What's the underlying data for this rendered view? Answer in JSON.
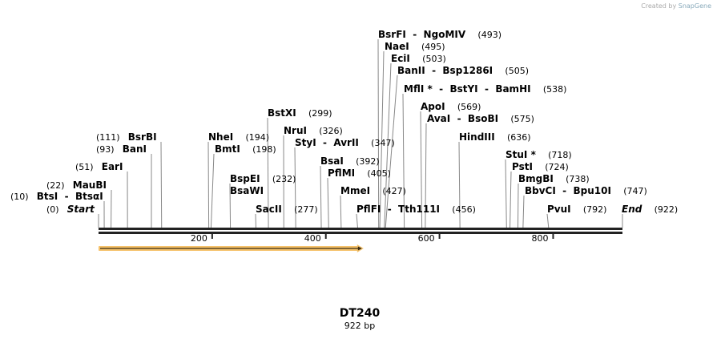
{
  "credit": {
    "prefix": "Created by",
    "brand": "SnapGene"
  },
  "map": {
    "name": "DT240",
    "length_label": "922 bp",
    "length_bp": 922,
    "ticks": [
      {
        "bp": 200,
        "label": "200"
      },
      {
        "bp": 400,
        "label": "400"
      },
      {
        "bp": 600,
        "label": "600"
      },
      {
        "bp": 800,
        "label": "800"
      }
    ],
    "feature": {
      "start": 1,
      "end": 465,
      "direction": "forward",
      "color": "#f5c26b"
    },
    "sites": [
      {
        "name": "Start",
        "pos": 0,
        "pos_label": "(0)",
        "italic": true
      },
      {
        "name": "BtsI  -  BtsαI",
        "pos": 10,
        "pos_label": "(10)"
      },
      {
        "name": "MauBI",
        "pos": 22,
        "pos_label": "(22)"
      },
      {
        "name": "EarI",
        "pos": 51,
        "pos_label": "(51)"
      },
      {
        "name": "BanI",
        "pos": 93,
        "pos_label": "(93)"
      },
      {
        "name": "BsrBI",
        "pos": 111,
        "pos_label": "(111)"
      },
      {
        "name": "NheI",
        "pos": 194,
        "pos_label": "(194)"
      },
      {
        "name": "BmtI",
        "pos": 198,
        "pos_label": "(198)"
      },
      {
        "name": "BspEI",
        "pos": 232,
        "pos_label": "(232)"
      },
      {
        "name": "BsaWI",
        "pos": 232,
        "pos_label": ""
      },
      {
        "name": "SacII",
        "pos": 277,
        "pos_label": "(277)"
      },
      {
        "name": "BstXI",
        "pos": 299,
        "pos_label": "(299)"
      },
      {
        "name": "NruI",
        "pos": 326,
        "pos_label": "(326)"
      },
      {
        "name": "StyI  -  AvrII",
        "pos": 347,
        "pos_label": "(347)"
      },
      {
        "name": "BsaI",
        "pos": 392,
        "pos_label": "(392)"
      },
      {
        "name": "PflMI",
        "pos": 405,
        "pos_label": "(405)"
      },
      {
        "name": "MmeI",
        "pos": 427,
        "pos_label": "(427)"
      },
      {
        "name": "PflFI  -  Tth111I",
        "pos": 456,
        "pos_label": "(456)"
      },
      {
        "name": "BsrFI  -  NgoMIV",
        "pos": 493,
        "pos_label": "(493)"
      },
      {
        "name": "NaeI",
        "pos": 495,
        "pos_label": "(495)"
      },
      {
        "name": "EciI",
        "pos": 503,
        "pos_label": "(503)"
      },
      {
        "name": "BanII  -  Bsp1286I",
        "pos": 505,
        "pos_label": "(505)"
      },
      {
        "name": "MflI *  -  BstYI  -  BamHI",
        "pos": 538,
        "pos_label": "(538)"
      },
      {
        "name": "ApoI",
        "pos": 569,
        "pos_label": "(569)"
      },
      {
        "name": "AvaI  -  BsoBI",
        "pos": 575,
        "pos_label": "(575)"
      },
      {
        "name": "HindIII",
        "pos": 636,
        "pos_label": "(636)"
      },
      {
        "name": "StuI *",
        "pos": 718,
        "pos_label": "(718)"
      },
      {
        "name": "PstI",
        "pos": 724,
        "pos_label": "(724)"
      },
      {
        "name": "BmgBI",
        "pos": 738,
        "pos_label": "(738)"
      },
      {
        "name": "BbvCI  -  Bpu10I",
        "pos": 747,
        "pos_label": "(747)"
      },
      {
        "name": "PvuI",
        "pos": 792,
        "pos_label": "(792)"
      },
      {
        "name": "End",
        "pos": 922,
        "pos_label": "(922)",
        "italic": true
      }
    ]
  }
}
